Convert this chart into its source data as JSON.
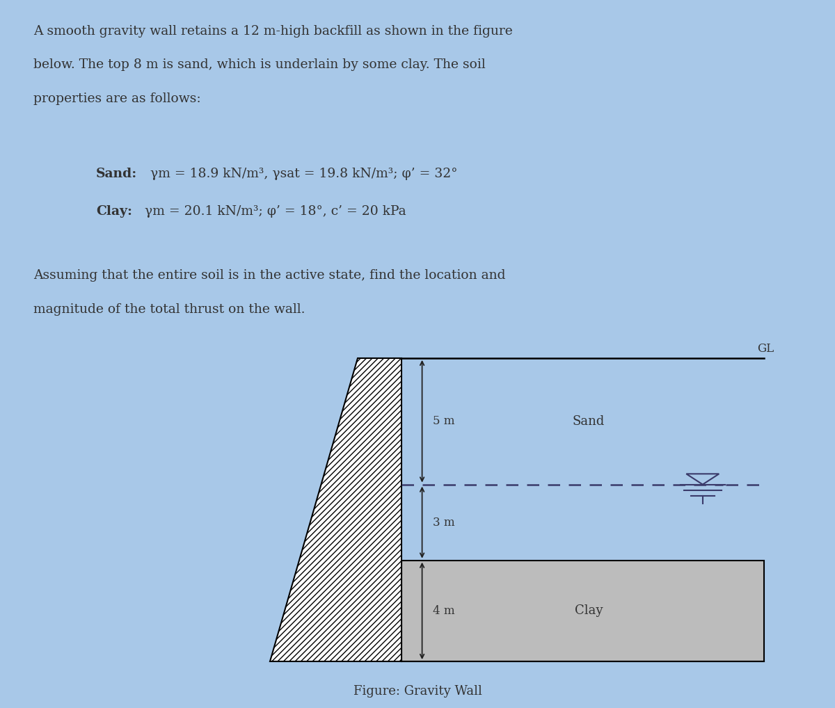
{
  "background_color": "#a8c8e8",
  "text_color": "#333333",
  "line1": "A smooth gravity wall retains a 12 m-high backfill as shown in the figure",
  "line2": "below. The top 8 m is sand, which is underlain by some clay. The soil",
  "line3": "properties are as follows:",
  "sand_bold": "Sand:",
  "sand_rest": " γm = 18.9 kN/m³, γsat = 19.8 kN/m³; φ’ = 32°",
  "clay_bold": "Clay:",
  "clay_rest": " γm = 20.1 kN/m³; φ’ = 18°, c’ = 20 kPa",
  "assume1": "Assuming that the entire soil is in the active state, find the location and",
  "assume2": "magnitude of the total thrust on the wall.",
  "figure_caption": "Figure: Gravity Wall",
  "dim_5m": "5 m",
  "dim_3m": "3 m",
  "dim_4m": "4 m",
  "label_sand": "Sand",
  "label_clay": "Clay",
  "label_gl": "GL",
  "clay_fill_color": "#bcbcbc",
  "wall_face_color": "#ffffff",
  "dashed_color": "#3a3a6a",
  "arrow_color": "#222222"
}
